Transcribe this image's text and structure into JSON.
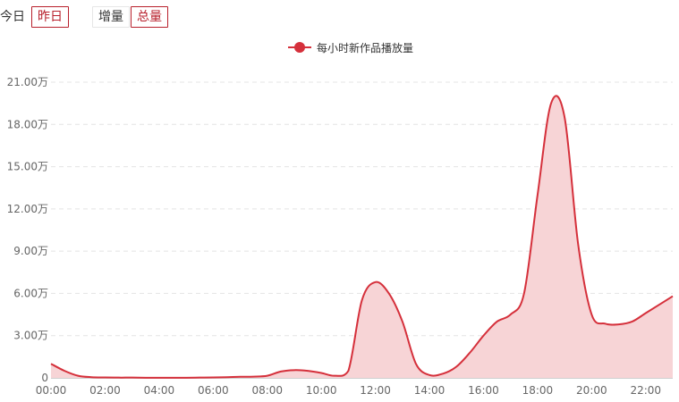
{
  "controls": {
    "day": {
      "today": "今日",
      "yesterday": "昨日",
      "selected": "yesterday"
    },
    "mode": {
      "increment": "增量",
      "total": "总量",
      "selected": "total"
    }
  },
  "colors": {
    "series_line": "#d5303b",
    "series_area": "#f7d4d6",
    "active_border": "#b8202c",
    "grid": "#e4e4e4",
    "axis_text": "#666666"
  },
  "chart_data": {
    "type": "area",
    "x": [
      "00:00",
      "00:30",
      "01:00",
      "01:30",
      "02:00",
      "02:30",
      "03:00",
      "03:30",
      "04:00",
      "04:30",
      "05:00",
      "05:30",
      "06:00",
      "06:30",
      "07:00",
      "07:30",
      "08:00",
      "08:30",
      "09:00",
      "09:30",
      "10:00",
      "10:30",
      "11:00",
      "11:30",
      "12:00",
      "12:30",
      "13:00",
      "13:30",
      "14:00",
      "14:30",
      "15:00",
      "15:30",
      "16:00",
      "16:30",
      "17:00",
      "17:30",
      "18:00",
      "18:30",
      "19:00",
      "19:30",
      "20:00",
      "20:30",
      "21:00",
      "21:30",
      "22:00",
      "22:30",
      "23:00"
    ],
    "x_tick_labels": [
      "00:00",
      "02:00",
      "04:00",
      "06:00",
      "08:00",
      "10:00",
      "12:00",
      "14:00",
      "16:00",
      "18:00",
      "20:00",
      "22:00"
    ],
    "series": [
      {
        "name": "每小时新作品播放量",
        "values": [
          10000,
          5000,
          1500,
          500,
          300,
          200,
          200,
          100,
          100,
          100,
          100,
          200,
          300,
          500,
          800,
          900,
          1500,
          4500,
          5500,
          5000,
          3500,
          1500,
          5000,
          55000,
          68000,
          60000,
          40000,
          10000,
          2000,
          3000,
          8000,
          18000,
          30000,
          40000,
          45000,
          60000,
          130000,
          195000,
          185000,
          95000,
          45000,
          38500,
          38000,
          40000,
          46000,
          52000,
          58000
        ]
      }
    ],
    "y_ticks": [
      "0",
      "3.00万",
      "6.00万",
      "9.00万",
      "12.00万",
      "15.00万",
      "18.00万",
      "21.00万"
    ],
    "ylim": [
      0,
      210000
    ],
    "grid": true,
    "legend_position": "top-center"
  }
}
